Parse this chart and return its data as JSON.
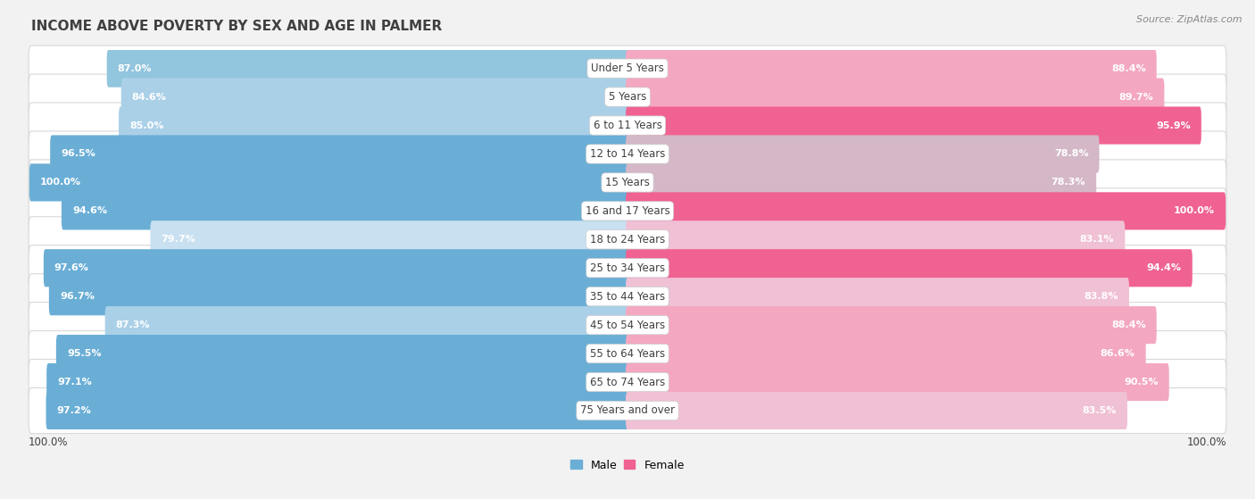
{
  "title": "INCOME ABOVE POVERTY BY SEX AND AGE IN PALMER",
  "source": "Source: ZipAtlas.com",
  "categories": [
    "Under 5 Years",
    "5 Years",
    "6 to 11 Years",
    "12 to 14 Years",
    "15 Years",
    "16 and 17 Years",
    "18 to 24 Years",
    "25 to 34 Years",
    "35 to 44 Years",
    "45 to 54 Years",
    "55 to 64 Years",
    "65 to 74 Years",
    "75 Years and over"
  ],
  "male_values": [
    87.0,
    84.6,
    85.0,
    96.5,
    100.0,
    94.6,
    79.7,
    97.6,
    96.7,
    87.3,
    95.5,
    97.1,
    97.2
  ],
  "female_values": [
    88.4,
    89.7,
    95.9,
    78.8,
    78.3,
    100.0,
    83.1,
    94.4,
    83.8,
    88.4,
    86.6,
    90.5,
    83.5
  ],
  "male_colors": [
    "#92c5de",
    "#aad0e8",
    "#aad0e8",
    "#6aaed6",
    "#6aaed6",
    "#6aaed6",
    "#c8e0f0",
    "#6aaed6",
    "#6aaed6",
    "#aad0e8",
    "#6aaed6",
    "#6aaed6",
    "#6aaed6"
  ],
  "female_colors": [
    "#f4a7c0",
    "#f4a7c0",
    "#f06292",
    "#d4b8c8",
    "#d4b8c8",
    "#f06292",
    "#f0c0d4",
    "#f06292",
    "#f0c0d4",
    "#f4a7c0",
    "#f4a7c0",
    "#f4a7c0",
    "#f0c0d4"
  ],
  "bg_color": "#f2f2f2",
  "row_bg_color": "#ffffff",
  "row_border_color": "#d8d8d8",
  "title_color": "#404040",
  "label_color": "#404040",
  "value_color_white": "#ffffff",
  "value_color_dark": "#606060",
  "source_color": "#888888",
  "legend_male_color": "#6aaed6",
  "legend_female_color": "#f06292",
  "title_fontsize": 11,
  "label_fontsize": 8.5,
  "value_fontsize": 8.0,
  "legend_fontsize": 9,
  "source_fontsize": 8
}
